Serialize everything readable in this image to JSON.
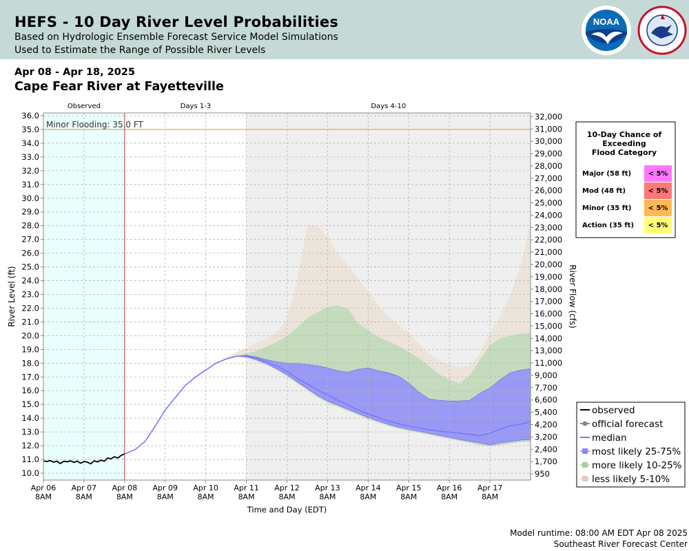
{
  "header": {
    "title": "HEFS - 10 Day River Level Probabilities",
    "subtitle1": "Based on Hydrologic Ensemble Forecast Service Model Simulations",
    "subtitle2": "Used to Estimate the Range of Possible River Levels",
    "logos": [
      "noaa-logo",
      "national-weather-service-logo"
    ]
  },
  "date_range": "Apr 08 - Apr 18, 2025",
  "station": "Cape Fear River at Fayetteville",
  "footer": {
    "runtime": "Model runtime: 08:00 AM EDT Apr 08 2025",
    "center": "Southeast River Forecast Center"
  },
  "colors": {
    "observed_band": "#eafefe",
    "days_4_10_band": "#efefef",
    "minor_flood_line": "#e0a050",
    "observed": "#000000",
    "median": "#7777ff",
    "likely_25_75": "#9999f5",
    "likely_10_25": "#c5dbbd",
    "likely_5_10": "#ece4db",
    "major": "#ff77ff",
    "mod": "#ff7777",
    "minor": "#ffb854",
    "action": "#ffff77"
  },
  "chart_data": {
    "type": "area",
    "period_labels": [
      "Observed",
      "Days 1-3",
      "Days 4-10"
    ],
    "minor_flood_label": "Minor Flooding: 35.0 FT",
    "minor_flood_stage": 35.0,
    "xlabel": "Time and Day (EDT)",
    "ylabel": "River Level (ft)",
    "ylabel_right": "River Flow (cfs)",
    "ylim": [
      9.5,
      36.2
    ],
    "x_range_hours": [
      0,
      288
    ],
    "x_ticks": [
      {
        "h": 0,
        "label": "Apr 06",
        "sub": "8AM"
      },
      {
        "h": 24,
        "label": "Apr 07",
        "sub": "8AM"
      },
      {
        "h": 48,
        "label": "Apr 08",
        "sub": "8AM"
      },
      {
        "h": 72,
        "label": "Apr 09",
        "sub": "8AM"
      },
      {
        "h": 96,
        "label": "Apr 10",
        "sub": "8AM"
      },
      {
        "h": 120,
        "label": "Apr 11",
        "sub": "8AM"
      },
      {
        "h": 144,
        "label": "Apr 12",
        "sub": "8AM"
      },
      {
        "h": 168,
        "label": "Apr 13",
        "sub": "8AM"
      },
      {
        "h": 192,
        "label": "Apr 14",
        "sub": "8AM"
      },
      {
        "h": 216,
        "label": "Apr 15",
        "sub": "8AM"
      },
      {
        "h": 240,
        "label": "Apr 16",
        "sub": "8AM"
      },
      {
        "h": 264,
        "label": "Apr 17",
        "sub": "8AM"
      }
    ],
    "y_ticks": [
      "10.0",
      "11.0",
      "12.0",
      "13.0",
      "14.0",
      "15.0",
      "16.0",
      "17.0",
      "18.0",
      "19.0",
      "20.0",
      "21.0",
      "22.0",
      "23.0",
      "24.0",
      "25.0",
      "26.0",
      "27.0",
      "28.0",
      "29.0",
      "30.0",
      "31.0",
      "32.0",
      "33.0",
      "34.0",
      "35.0",
      "36.0"
    ],
    "right_ticks": [
      {
        "stage": 10.0,
        "label": "950"
      },
      {
        "stage": 11.0,
        "label": "1,700"
      },
      {
        "stage": 12.0,
        "label": "2,400"
      },
      {
        "stage": 13.0,
        "label": "3,200"
      },
      {
        "stage": 14.0,
        "label": "4,200"
      },
      {
        "stage": 15.0,
        "label": "5,400"
      },
      {
        "stage": 16.0,
        "label": "6,600"
      },
      {
        "stage": 17.0,
        "label": "7,700"
      },
      {
        "stage": 18.0,
        "label": "9,000"
      },
      {
        "stage": 19.0,
        "label": "11,000"
      },
      {
        "stage": 20.0,
        "label": "13,000"
      },
      {
        "stage": 21.0,
        "label": "14,000"
      },
      {
        "stage": 22.0,
        "label": "15,000"
      },
      {
        "stage": 23.0,
        "label": "16,000"
      },
      {
        "stage": 24.0,
        "label": "17,000"
      },
      {
        "stage": 25.0,
        "label": "18,000"
      },
      {
        "stage": 26.0,
        "label": "19,000"
      },
      {
        "stage": 27.0,
        "label": "20,000"
      },
      {
        "stage": 28.0,
        "label": "21,000"
      },
      {
        "stage": 29.0,
        "label": "22,000"
      },
      {
        "stage": 30.0,
        "label": "23,000"
      },
      {
        "stage": 31.0,
        "label": "24,000"
      },
      {
        "stage": 32.0,
        "label": "25,000"
      },
      {
        "stage": 33.0,
        "label": "26,000"
      },
      {
        "stage": 34.0,
        "label": "27,000"
      },
      {
        "stage": 35.0,
        "label": "28,000"
      },
      {
        "stage": 36.0,
        "label": "29,000"
      },
      {
        "stage": 37.0,
        "label": "30,000"
      },
      {
        "stage": 38.0,
        "label": "31,000"
      },
      {
        "stage": 39.0,
        "label": "32,000"
      }
    ],
    "observed": {
      "hours": [
        0,
        2,
        4,
        6,
        8,
        10,
        12,
        14,
        16,
        18,
        20,
        22,
        24,
        26,
        28,
        30,
        32,
        34,
        36,
        38,
        40,
        42,
        44,
        46,
        48
      ],
      "stage": [
        10.9,
        10.85,
        10.92,
        10.8,
        10.88,
        10.7,
        10.87,
        10.83,
        10.9,
        10.78,
        10.88,
        10.72,
        10.85,
        10.8,
        10.68,
        10.9,
        10.82,
        10.95,
        10.88,
        11.1,
        11.05,
        11.2,
        11.1,
        11.3,
        11.4
      ]
    },
    "forecast_hours": [
      48,
      54,
      60,
      66,
      72,
      78,
      84,
      90,
      96,
      102,
      108,
      114,
      120,
      126,
      132,
      138,
      144,
      150,
      156,
      162,
      168,
      174,
      180,
      186,
      192,
      198,
      204,
      210,
      216,
      222,
      228,
      234,
      240,
      246,
      252,
      258,
      264,
      270,
      276,
      282,
      288
    ],
    "series": [
      {
        "name": "median",
        "values": [
          11.4,
          11.7,
          12.3,
          13.4,
          14.6,
          15.5,
          16.4,
          17.0,
          17.5,
          18.0,
          18.3,
          18.5,
          18.52,
          18.35,
          18.1,
          17.8,
          17.4,
          16.9,
          16.5,
          16.05,
          15.7,
          15.3,
          14.95,
          14.6,
          14.3,
          14.05,
          13.8,
          13.6,
          13.42,
          13.28,
          13.15,
          13.05,
          12.98,
          12.92,
          12.82,
          12.72,
          12.9,
          13.2,
          13.45,
          13.55,
          13.75
        ]
      },
      {
        "name": "most likely 25-75%",
        "lower": [
          11.4,
          11.7,
          12.3,
          13.4,
          14.6,
          15.5,
          16.4,
          17.0,
          17.5,
          18.0,
          18.3,
          18.5,
          18.45,
          18.25,
          17.95,
          17.6,
          17.15,
          16.65,
          16.15,
          15.65,
          15.25,
          14.95,
          14.65,
          14.35,
          14.05,
          13.8,
          13.55,
          13.35,
          13.18,
          13.05,
          12.9,
          12.75,
          12.6,
          12.45,
          12.32,
          12.2,
          12.05,
          12.2,
          12.3,
          12.4,
          12.45
        ],
        "upper": [
          11.4,
          11.7,
          12.3,
          13.4,
          14.6,
          15.5,
          16.4,
          17.0,
          17.5,
          18.0,
          18.3,
          18.5,
          18.58,
          18.45,
          18.25,
          18.1,
          18.0,
          17.98,
          17.9,
          17.82,
          17.65,
          17.45,
          17.35,
          17.55,
          17.65,
          17.45,
          17.3,
          17.05,
          16.55,
          15.9,
          15.4,
          15.3,
          15.25,
          15.25,
          15.3,
          15.8,
          16.2,
          16.8,
          17.3,
          17.5,
          17.6
        ]
      },
      {
        "name": "more likely 10-25%",
        "lower": [
          11.4,
          11.7,
          12.3,
          13.4,
          14.6,
          15.5,
          16.4,
          17.0,
          17.5,
          18.0,
          18.3,
          18.5,
          18.42,
          18.2,
          17.9,
          17.5,
          17.05,
          16.55,
          16.05,
          15.55,
          15.15,
          14.85,
          14.55,
          14.25,
          13.95,
          13.7,
          13.45,
          13.25,
          13.08,
          12.95,
          12.8,
          12.65,
          12.5,
          12.35,
          12.2,
          12.05,
          11.95,
          12.05,
          12.15,
          12.25,
          12.3
        ],
        "upper": [
          11.4,
          11.7,
          12.3,
          13.4,
          14.6,
          15.5,
          16.4,
          17.0,
          17.5,
          18.0,
          18.3,
          18.5,
          18.7,
          18.9,
          19.2,
          19.55,
          19.95,
          20.6,
          21.3,
          21.7,
          22.1,
          22.2,
          22.0,
          20.9,
          20.4,
          19.9,
          19.6,
          19.25,
          18.8,
          18.35,
          17.8,
          17.2,
          16.8,
          16.5,
          17.1,
          18.2,
          19.3,
          19.8,
          20.0,
          20.15,
          20.2
        ]
      },
      {
        "name": "less likely 5-10%",
        "lower": [
          11.4,
          11.7,
          12.3,
          13.4,
          14.6,
          15.5,
          16.4,
          17.0,
          17.5,
          18.0,
          18.3,
          18.5,
          18.4,
          18.15,
          17.85,
          17.45,
          17.0,
          16.5,
          16.0,
          15.5,
          15.1,
          14.8,
          14.5,
          14.2,
          13.9,
          13.65,
          13.4,
          13.2,
          13.05,
          12.92,
          12.78,
          12.62,
          12.48,
          12.33,
          12.18,
          12.02,
          11.95,
          12.05,
          12.15,
          12.25,
          12.3
        ],
        "upper": [
          11.4,
          11.7,
          12.3,
          13.4,
          14.6,
          15.5,
          16.4,
          17.0,
          17.5,
          18.0,
          18.4,
          18.8,
          19.1,
          19.5,
          19.8,
          20.3,
          21.2,
          24.0,
          28.0,
          28.0,
          27.2,
          26.0,
          25.1,
          24.2,
          23.2,
          22.2,
          21.4,
          20.8,
          20.2,
          19.4,
          18.7,
          18.2,
          17.9,
          17.7,
          17.8,
          18.7,
          20.2,
          21.4,
          23.0,
          25.0,
          28.3
        ]
      }
    ],
    "legend": [
      {
        "label": "observed",
        "kind": "line",
        "color": "#000000"
      },
      {
        "label": "official forecast",
        "kind": "dotline",
        "color": "#888888"
      },
      {
        "label": "median",
        "kind": "line",
        "color": "#7777ff"
      },
      {
        "label": "most likely 25-75%",
        "kind": "box",
        "color": "#8888ff"
      },
      {
        "label": "more likely 10-25%",
        "kind": "box",
        "color": "#aacc99"
      },
      {
        "label": "less likely 5-10%",
        "kind": "box",
        "color": "#ddccbb"
      }
    ],
    "exceedance": {
      "title_lines": [
        "10-Day Chance of",
        "Exceeding",
        "Flood Category"
      ],
      "rows": [
        {
          "label": "Major (58 ft)",
          "value": "< 5%",
          "color_key": "major"
        },
        {
          "label": "Mod (48 ft)",
          "value": "< 5%",
          "color_key": "mod"
        },
        {
          "label": "Minor (35 ft)",
          "value": "< 5%",
          "color_key": "minor"
        },
        {
          "label": "Action (35 ft)",
          "value": "< 5%",
          "color_key": "action"
        }
      ]
    }
  }
}
